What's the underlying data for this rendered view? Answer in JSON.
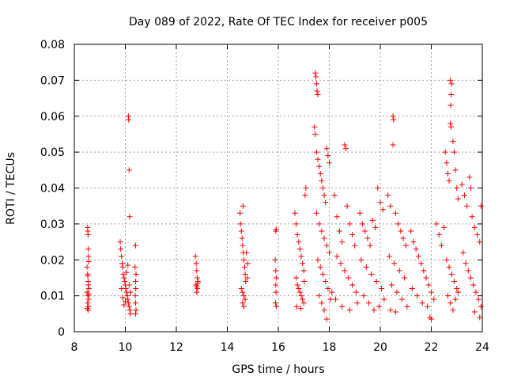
{
  "chart_data": {
    "type": "scatter",
    "title": "Day 089 of 2022, Rate Of TEC Index for receiver p005",
    "xlabel": "GPS time / hours",
    "ylabel": "ROTI / TECUs",
    "xlim": [
      8,
      24
    ],
    "ylim": [
      0,
      0.08
    ],
    "x_ticks": [
      8,
      10,
      12,
      14,
      16,
      18,
      20,
      22,
      24
    ],
    "x_tick_labels": [
      "8",
      "10",
      "12",
      "14",
      "16",
      "18",
      "20",
      "22",
      "24"
    ],
    "y_ticks": [
      0,
      0.01,
      0.02,
      0.03,
      0.04,
      0.05,
      0.06,
      0.07,
      0.08
    ],
    "y_tick_labels": [
      "0",
      "0.01",
      "0.02",
      "0.03",
      "0.04",
      "0.05",
      "0.06",
      "0.07",
      "0.08"
    ],
    "grid": true,
    "marker": "+",
    "colors": {
      "points": "#ff0000",
      "grid": "#a0a0a0",
      "axes": "#000000"
    },
    "series": [
      {
        "name": "ROTI",
        "points": [
          [
            8.52,
            0.029
          ],
          [
            8.53,
            0.028
          ],
          [
            8.54,
            0.027
          ],
          [
            8.55,
            0.023
          ],
          [
            8.56,
            0.021
          ],
          [
            8.5,
            0.018
          ],
          [
            8.52,
            0.016
          ],
          [
            8.54,
            0.014
          ],
          [
            8.55,
            0.013
          ],
          [
            8.57,
            0.012
          ],
          [
            8.5,
            0.011
          ],
          [
            8.53,
            0.01
          ],
          [
            8.56,
            0.009
          ],
          [
            8.52,
            0.008
          ],
          [
            8.55,
            0.007
          ],
          [
            8.51,
            0.0065
          ],
          [
            8.54,
            0.006
          ],
          [
            8.57,
            0.0105
          ],
          [
            8.53,
            0.0155
          ],
          [
            8.56,
            0.0195
          ],
          [
            9.8,
            0.025
          ],
          [
            9.82,
            0.023
          ],
          [
            9.85,
            0.021
          ],
          [
            9.88,
            0.019
          ],
          [
            9.9,
            0.018
          ],
          [
            9.92,
            0.016
          ],
          [
            9.95,
            0.015
          ],
          [
            9.98,
            0.014
          ],
          [
            10.0,
            0.013
          ],
          [
            10.02,
            0.012
          ],
          [
            10.05,
            0.011
          ],
          [
            10.08,
            0.01
          ],
          [
            10.1,
            0.009
          ],
          [
            10.12,
            0.008
          ],
          [
            10.15,
            0.007
          ],
          [
            10.18,
            0.006
          ],
          [
            10.2,
            0.005
          ],
          [
            9.85,
            0.012
          ],
          [
            9.9,
            0.0095
          ],
          [
            9.95,
            0.0075
          ],
          [
            10.0,
            0.0085
          ],
          [
            10.05,
            0.0165
          ],
          [
            10.1,
            0.0185
          ],
          [
            10.15,
            0.013
          ],
          [
            10.2,
            0.011
          ],
          [
            10.12,
            0.06
          ],
          [
            10.13,
            0.059
          ],
          [
            10.15,
            0.045
          ],
          [
            10.17,
            0.032
          ],
          [
            10.4,
            0.024
          ],
          [
            10.38,
            0.018
          ],
          [
            10.42,
            0.016
          ],
          [
            10.4,
            0.014
          ],
          [
            10.41,
            0.012
          ],
          [
            10.39,
            0.01
          ],
          [
            10.4,
            0.008
          ],
          [
            10.42,
            0.006
          ],
          [
            10.4,
            0.005
          ],
          [
            12.75,
            0.021
          ],
          [
            12.78,
            0.019
          ],
          [
            12.8,
            0.017
          ],
          [
            12.82,
            0.015
          ],
          [
            12.85,
            0.014
          ],
          [
            12.77,
            0.013
          ],
          [
            12.8,
            0.0125
          ],
          [
            12.83,
            0.012
          ],
          [
            12.8,
            0.011
          ],
          [
            12.84,
            0.0135
          ],
          [
            14.5,
            0.033
          ],
          [
            14.52,
            0.03
          ],
          [
            14.55,
            0.028
          ],
          [
            14.58,
            0.026
          ],
          [
            14.6,
            0.024
          ],
          [
            14.62,
            0.022
          ],
          [
            14.65,
            0.02
          ],
          [
            14.68,
            0.018
          ],
          [
            14.7,
            0.016
          ],
          [
            14.72,
            0.014
          ],
          [
            14.55,
            0.012
          ],
          [
            14.6,
            0.011
          ],
          [
            14.65,
            0.01
          ],
          [
            14.7,
            0.009
          ],
          [
            14.6,
            0.008
          ],
          [
            14.65,
            0.007
          ],
          [
            14.62,
            0.035
          ],
          [
            14.75,
            0.022
          ],
          [
            14.8,
            0.019
          ],
          [
            14.78,
            0.015
          ],
          [
            15.9,
            0.028
          ],
          [
            15.92,
            0.0285
          ],
          [
            15.88,
            0.02
          ],
          [
            15.9,
            0.017
          ],
          [
            15.92,
            0.015
          ],
          [
            15.9,
            0.013
          ],
          [
            15.91,
            0.011
          ],
          [
            15.89,
            0.008
          ],
          [
            15.92,
            0.007
          ],
          [
            16.65,
            0.033
          ],
          [
            16.7,
            0.03
          ],
          [
            16.75,
            0.027
          ],
          [
            16.8,
            0.025
          ],
          [
            16.85,
            0.023
          ],
          [
            16.9,
            0.021
          ],
          [
            16.95,
            0.019
          ],
          [
            17.0,
            0.017
          ],
          [
            16.7,
            0.015
          ],
          [
            16.75,
            0.013
          ],
          [
            16.8,
            0.012
          ],
          [
            16.85,
            0.011
          ],
          [
            16.9,
            0.01
          ],
          [
            16.95,
            0.009
          ],
          [
            17.0,
            0.008
          ],
          [
            16.72,
            0.007
          ],
          [
            16.88,
            0.0065
          ],
          [
            17.02,
            0.014
          ],
          [
            17.05,
            0.038
          ],
          [
            17.08,
            0.04
          ],
          [
            17.45,
            0.072
          ],
          [
            17.48,
            0.071
          ],
          [
            17.5,
            0.069
          ],
          [
            17.52,
            0.067
          ],
          [
            17.55,
            0.066
          ],
          [
            17.42,
            0.057
          ],
          [
            17.45,
            0.055
          ],
          [
            17.5,
            0.05
          ],
          [
            17.55,
            0.048
          ],
          [
            17.6,
            0.046
          ],
          [
            17.65,
            0.044
          ],
          [
            17.7,
            0.042
          ],
          [
            17.75,
            0.04
          ],
          [
            17.8,
            0.038
          ],
          [
            17.85,
            0.036
          ],
          [
            17.9,
            0.051
          ],
          [
            17.95,
            0.049
          ],
          [
            18.0,
            0.047
          ],
          [
            17.5,
            0.033
          ],
          [
            17.6,
            0.03
          ],
          [
            17.7,
            0.028
          ],
          [
            17.8,
            0.026
          ],
          [
            17.9,
            0.024
          ],
          [
            18.0,
            0.022
          ],
          [
            17.55,
            0.02
          ],
          [
            17.65,
            0.018
          ],
          [
            17.75,
            0.016
          ],
          [
            17.85,
            0.014
          ],
          [
            17.95,
            0.012
          ],
          [
            17.6,
            0.01
          ],
          [
            17.7,
            0.008
          ],
          [
            17.8,
            0.006
          ],
          [
            17.9,
            0.0035
          ],
          [
            18.05,
            0.009
          ],
          [
            18.1,
            0.011
          ],
          [
            18.2,
            0.038
          ],
          [
            18.3,
            0.032
          ],
          [
            18.4,
            0.028
          ],
          [
            18.5,
            0.025
          ],
          [
            18.6,
            0.052
          ],
          [
            18.65,
            0.051
          ],
          [
            18.7,
            0.035
          ],
          [
            18.8,
            0.03
          ],
          [
            18.9,
            0.027
          ],
          [
            19.0,
            0.024
          ],
          [
            18.3,
            0.021
          ],
          [
            18.45,
            0.019
          ],
          [
            18.6,
            0.017
          ],
          [
            18.75,
            0.015
          ],
          [
            18.9,
            0.013
          ],
          [
            19.05,
            0.011
          ],
          [
            18.25,
            0.009
          ],
          [
            18.5,
            0.007
          ],
          [
            18.8,
            0.006
          ],
          [
            19.1,
            0.008
          ],
          [
            19.2,
            0.033
          ],
          [
            19.3,
            0.03
          ],
          [
            19.4,
            0.028
          ],
          [
            19.5,
            0.026
          ],
          [
            19.6,
            0.024
          ],
          [
            19.7,
            0.031
          ],
          [
            19.8,
            0.029
          ],
          [
            19.9,
            0.04
          ],
          [
            20.0,
            0.036
          ],
          [
            20.1,
            0.034
          ],
          [
            19.25,
            0.02
          ],
          [
            19.45,
            0.018
          ],
          [
            19.65,
            0.016
          ],
          [
            19.85,
            0.014
          ],
          [
            20.05,
            0.012
          ],
          [
            19.35,
            0.01
          ],
          [
            19.55,
            0.008
          ],
          [
            19.75,
            0.006
          ],
          [
            19.95,
            0.007
          ],
          [
            20.15,
            0.009
          ],
          [
            20.3,
            0.038
          ],
          [
            20.4,
            0.035
          ],
          [
            20.5,
            0.06
          ],
          [
            20.52,
            0.059
          ],
          [
            20.5,
            0.052
          ],
          [
            20.6,
            0.033
          ],
          [
            20.7,
            0.03
          ],
          [
            20.8,
            0.028
          ],
          [
            20.9,
            0.026
          ],
          [
            21.0,
            0.024
          ],
          [
            20.35,
            0.021
          ],
          [
            20.55,
            0.019
          ],
          [
            20.75,
            0.017
          ],
          [
            20.95,
            0.015
          ],
          [
            20.45,
            0.013
          ],
          [
            20.65,
            0.011
          ],
          [
            20.85,
            0.009
          ],
          [
            21.05,
            0.007
          ],
          [
            20.4,
            0.006
          ],
          [
            20.6,
            0.0055
          ],
          [
            21.2,
            0.028
          ],
          [
            21.3,
            0.025
          ],
          [
            21.4,
            0.023
          ],
          [
            21.5,
            0.021
          ],
          [
            21.6,
            0.019
          ],
          [
            21.7,
            0.017
          ],
          [
            21.8,
            0.015
          ],
          [
            21.9,
            0.013
          ],
          [
            22.0,
            0.011
          ],
          [
            22.1,
            0.009
          ],
          [
            21.25,
            0.012
          ],
          [
            21.45,
            0.01
          ],
          [
            21.65,
            0.008
          ],
          [
            21.85,
            0.007
          ],
          [
            21.95,
            0.004
          ],
          [
            22.0,
            0.0035
          ],
          [
            22.2,
            0.03
          ],
          [
            22.3,
            0.027
          ],
          [
            22.4,
            0.024
          ],
          [
            22.5,
            0.029
          ],
          [
            22.55,
            0.05
          ],
          [
            22.6,
            0.047
          ],
          [
            22.65,
            0.044
          ],
          [
            22.7,
            0.042
          ],
          [
            22.75,
            0.058
          ],
          [
            22.78,
            0.057
          ],
          [
            22.8,
            0.069
          ],
          [
            22.75,
            0.07
          ],
          [
            22.78,
            0.066
          ],
          [
            22.76,
            0.063
          ],
          [
            22.85,
            0.053
          ],
          [
            22.9,
            0.05
          ],
          [
            22.95,
            0.045
          ],
          [
            23.0,
            0.04
          ],
          [
            23.05,
            0.037
          ],
          [
            22.6,
            0.02
          ],
          [
            22.7,
            0.018
          ],
          [
            22.8,
            0.016
          ],
          [
            22.9,
            0.014
          ],
          [
            23.0,
            0.012
          ],
          [
            22.65,
            0.01
          ],
          [
            22.75,
            0.008
          ],
          [
            22.85,
            0.006
          ],
          [
            22.95,
            0.009
          ],
          [
            23.05,
            0.011
          ],
          [
            23.2,
            0.041
          ],
          [
            23.3,
            0.038
          ],
          [
            23.4,
            0.035
          ],
          [
            23.5,
            0.043
          ],
          [
            23.55,
            0.04
          ],
          [
            23.6,
            0.032
          ],
          [
            23.7,
            0.029
          ],
          [
            23.8,
            0.027
          ],
          [
            23.9,
            0.025
          ],
          [
            23.95,
            0.035
          ],
          [
            23.25,
            0.022
          ],
          [
            23.35,
            0.019
          ],
          [
            23.45,
            0.017
          ],
          [
            23.55,
            0.015
          ],
          [
            23.65,
            0.013
          ],
          [
            23.75,
            0.011
          ],
          [
            23.85,
            0.009
          ],
          [
            23.95,
            0.007
          ],
          [
            23.9,
            0.004
          ],
          [
            23.7,
            0.0055
          ]
        ]
      }
    ]
  }
}
